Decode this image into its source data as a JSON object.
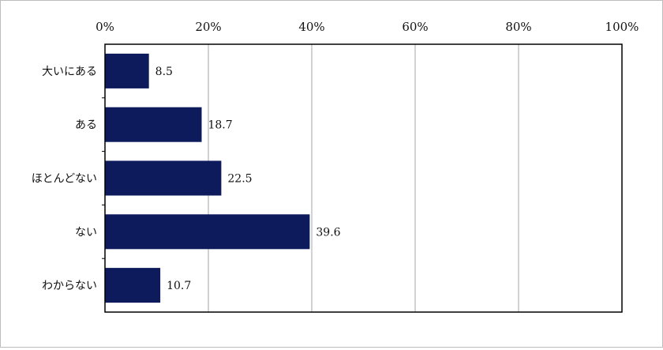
{
  "chart_data": {
    "type": "bar",
    "orientation": "horizontal",
    "categories": [
      "大いにある",
      "ある",
      "ほとんどない",
      "ない",
      "わからない"
    ],
    "values": [
      8.5,
      18.7,
      22.5,
      39.6,
      10.7
    ],
    "value_labels": [
      "8.5",
      "18.7",
      "22.5",
      "39.6",
      "10.7"
    ],
    "xlim": [
      0,
      100
    ],
    "x_ticks": [
      "0%",
      "20%",
      "40%",
      "60%",
      "80%",
      "100%"
    ],
    "x_tick_values": [
      0,
      20,
      40,
      60,
      80,
      100
    ],
    "x_axis_position": "top",
    "grid": true,
    "legend": "none",
    "title": "",
    "xlabel": "",
    "ylabel": "",
    "colors": {
      "bar": "#0d1a5c",
      "grid": "#a6a6a6",
      "axis": "#000000"
    }
  }
}
